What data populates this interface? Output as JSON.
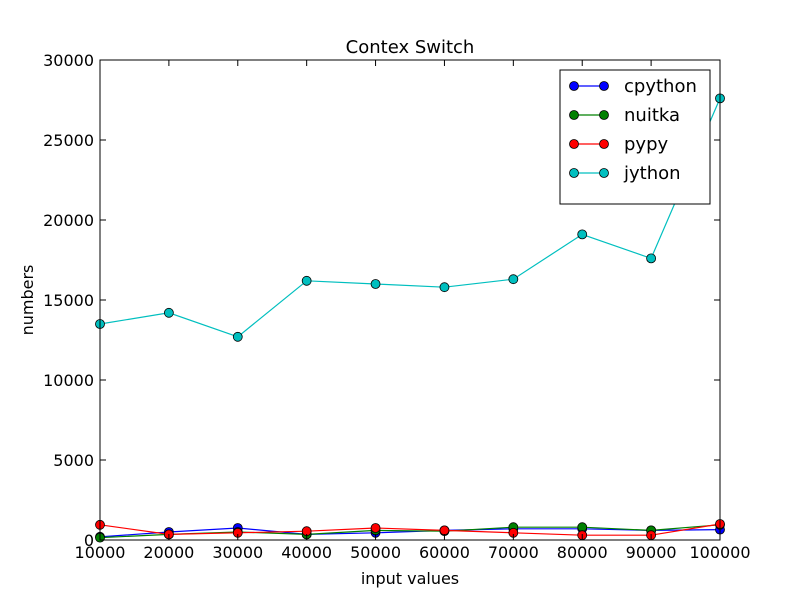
{
  "chart_data": {
    "type": "line",
    "title": "Contex Switch",
    "xlabel": "input values",
    "ylabel": "numbers",
    "xlim": [
      10000,
      100000
    ],
    "ylim": [
      0,
      30000
    ],
    "xticks": [
      "10000",
      "20000",
      "30000",
      "40000",
      "50000",
      "60000",
      "70000",
      "80000",
      "90000",
      "100000"
    ],
    "yticks": [
      "0",
      "5000",
      "10000",
      "15000",
      "20000",
      "25000",
      "30000"
    ],
    "x": [
      10000,
      20000,
      30000,
      40000,
      50000,
      60000,
      70000,
      80000,
      90000,
      100000
    ],
    "grid": false,
    "legend_position": "top-right",
    "series": [
      {
        "name": "cpython",
        "color": "#0000ff",
        "values": [
          200,
          500,
          750,
          350,
          450,
          600,
          700,
          700,
          600,
          650
        ]
      },
      {
        "name": "nuitka",
        "color": "#008000",
        "values": [
          150,
          350,
          500,
          350,
          600,
          550,
          800,
          800,
          600,
          950
        ]
      },
      {
        "name": "pypy",
        "color": "#ff0000",
        "values": [
          950,
          350,
          450,
          550,
          750,
          600,
          450,
          300,
          300,
          1000
        ]
      },
      {
        "name": "jython",
        "color": "#00bfbf",
        "values": [
          13500,
          14200,
          12700,
          16200,
          16000,
          15800,
          16300,
          19100,
          17600,
          27600
        ]
      }
    ]
  }
}
